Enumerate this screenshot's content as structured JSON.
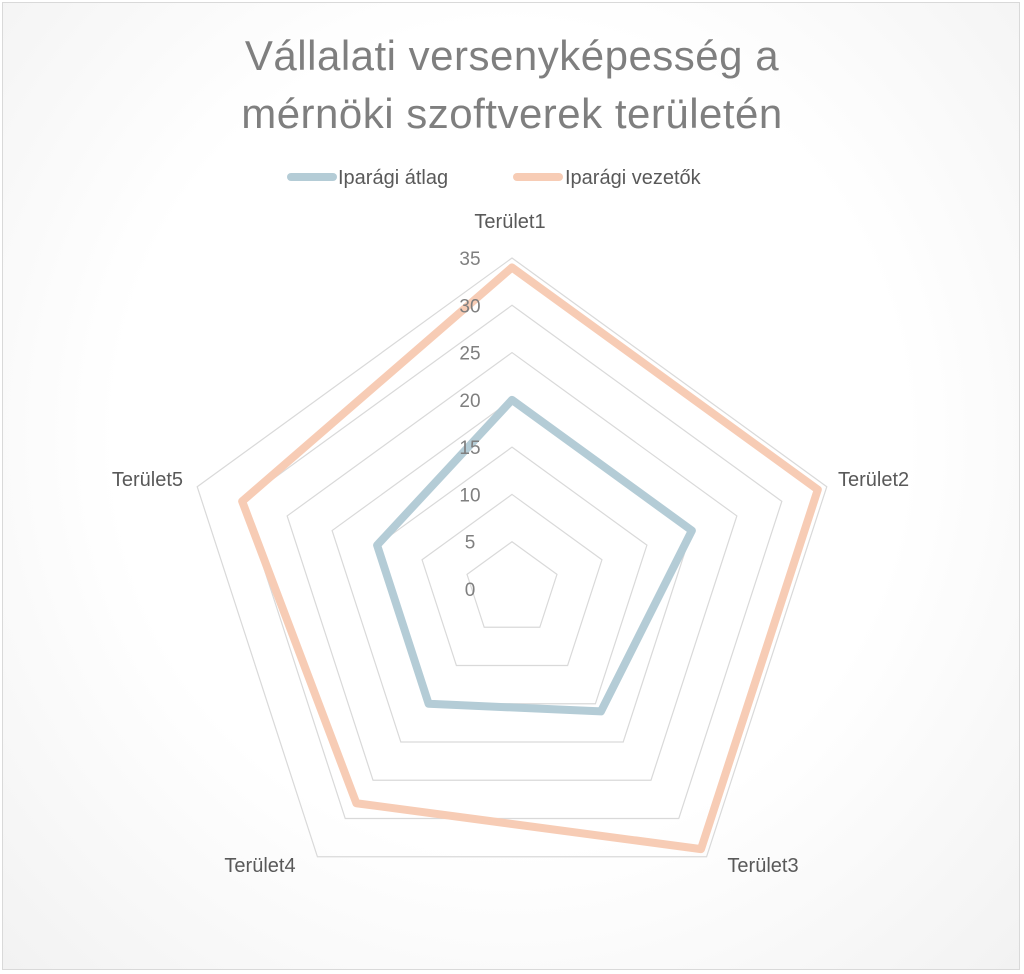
{
  "chart_data": {
    "type": "radar",
    "title_lines": [
      "Vállalati versenyképesség a",
      "mérnöki szoftverek területén"
    ],
    "categories": [
      "Terület1",
      "Terület2",
      "Terület3",
      "Terület4",
      "Terület5"
    ],
    "rmax": 35,
    "tick_labels": [
      "0",
      "5",
      "10",
      "15",
      "20",
      "25",
      "30",
      "35"
    ],
    "series": [
      {
        "name": "Iparági átlag",
        "values": [
          20,
          20,
          16,
          15,
          15
        ],
        "color": "#b4ccd6"
      },
      {
        "name": "Iparági vezetők",
        "values": [
          34,
          34,
          34,
          28,
          30
        ],
        "color": "#f7ccb5"
      }
    ],
    "legend_position": "top",
    "grid": true,
    "gridline_color": "#d9d9d9"
  }
}
